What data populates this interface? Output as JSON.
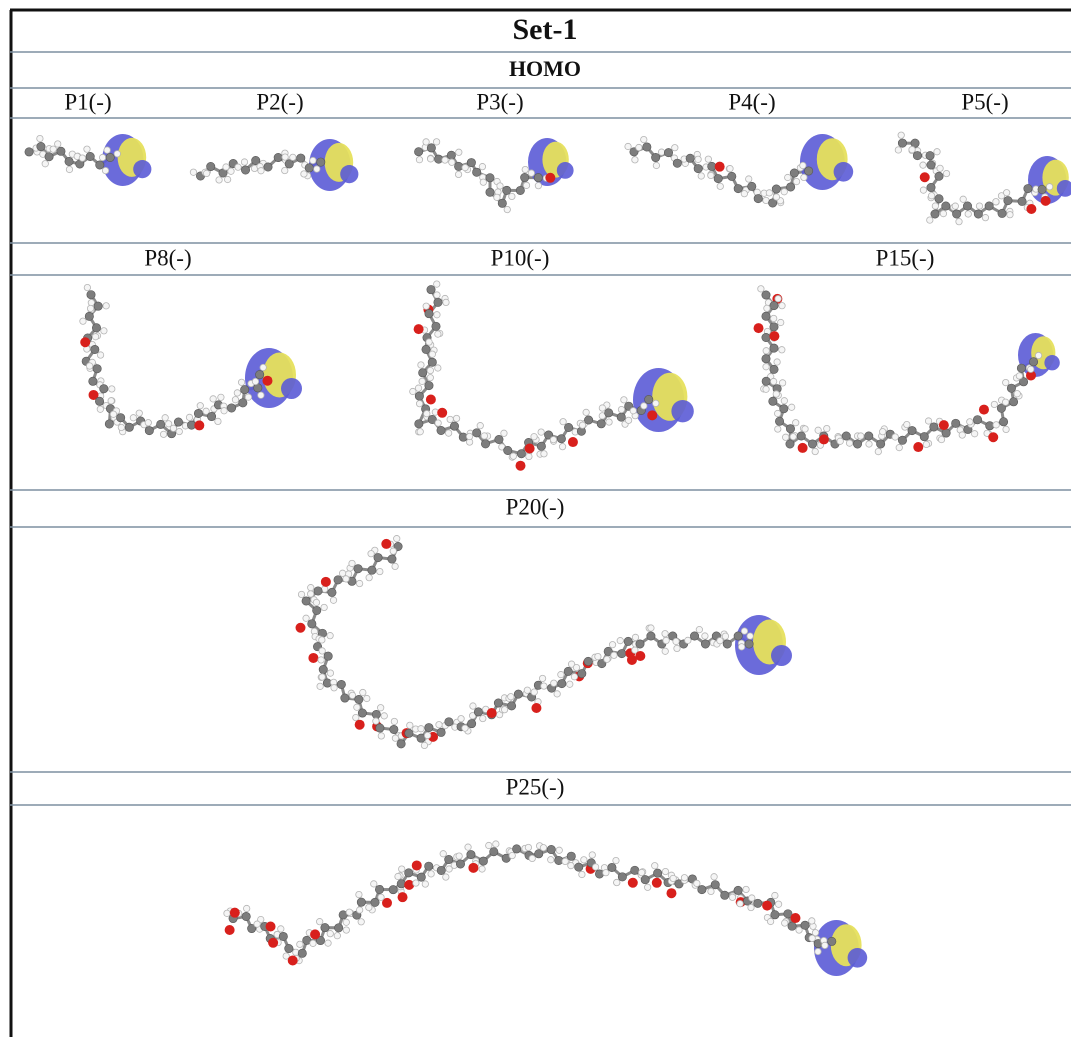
{
  "title": "Set-1",
  "subtitle": "HOMO",
  "rows": [
    {
      "labels": [
        "P1(-)",
        "P2(-)",
        "P3(-)",
        "P4(-)",
        "P5(-)"
      ]
    },
    {
      "labels": [
        "P8(-)",
        "P10(-)",
        "P15(-)"
      ]
    },
    {
      "labels": [
        "P20(-)"
      ]
    },
    {
      "labels": [
        "P25(-)"
      ]
    }
  ]
}
